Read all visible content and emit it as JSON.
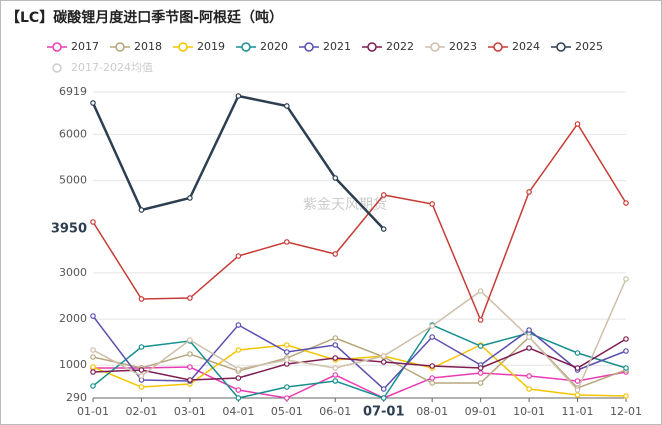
{
  "chart_data": {
    "type": "line",
    "title": "【LC】碳酸锂月度进口季节图-阿根廷（吨）",
    "watermark": "紫金天风期货",
    "categories": [
      "01-01",
      "02-01",
      "03-01",
      "04-01",
      "05-01",
      "06-01",
      "07-01",
      "08-01",
      "09-01",
      "10-01",
      "11-01",
      "12-01"
    ],
    "ylim": [
      290,
      6919
    ],
    "yticks": [
      290,
      1000,
      2000,
      3000,
      5000,
      6000,
      6919
    ],
    "grid": true,
    "crosshair": {
      "category": "07-01",
      "value": 3950
    },
    "legend_disabled": [
      "2017-2024均值"
    ],
    "series": [
      {
        "name": "2017",
        "color": "#e93cb4",
        "values": [
          940,
          940,
          961,
          463,
          290,
          788,
          290,
          723,
          832,
          767,
          658,
          853
        ]
      },
      {
        "name": "2018",
        "color": "#b8a77e",
        "values": [
          1178,
          940,
          1243,
          875,
          1156,
          1590,
          1178,
          615,
          615,
          1611,
          507,
          897
        ]
      },
      {
        "name": "2019",
        "color": "#f5c400",
        "values": [
          961,
          528,
          593,
          1330,
          1438,
          1113,
          1200,
          940,
          1438,
          485,
          355,
          333
        ]
      },
      {
        "name": "2020",
        "color": "#17908f",
        "values": [
          550,
          1395,
          1525,
          290,
          528,
          658,
          290,
          1871,
          1416,
          1698,
          1265,
          940
        ]
      },
      {
        "name": "2021",
        "color": "#5a4fb0",
        "values": [
          2066,
          680,
          658,
          1871,
          1286,
          1438,
          485,
          1611,
          1005,
          1763,
          897,
          1308
        ]
      },
      {
        "name": "2022",
        "color": "#7d1d52",
        "values": [
          853,
          897,
          680,
          723,
          1027,
          1156,
          1070,
          983,
          940,
          1373,
          940,
          1568
        ]
      },
      {
        "name": "2023",
        "color": "#cdbfaa",
        "values": [
          1330,
          767,
          1546,
          918,
          1113,
          940,
          1200,
          1850,
          2608,
          1611,
          463,
          2868
        ]
      },
      {
        "name": "2024",
        "color": "#c73b35",
        "values": [
          4103,
          2435,
          2456,
          3366,
          3670,
          3410,
          4688,
          4493,
          1980,
          4753,
          6226,
          4514
        ]
      },
      {
        "name": "2025",
        "color": "#2c3e50",
        "values": [
          6681,
          4363,
          4623,
          6832,
          6616,
          5056,
          3950,
          null,
          null,
          null,
          null,
          null
        ]
      }
    ]
  }
}
